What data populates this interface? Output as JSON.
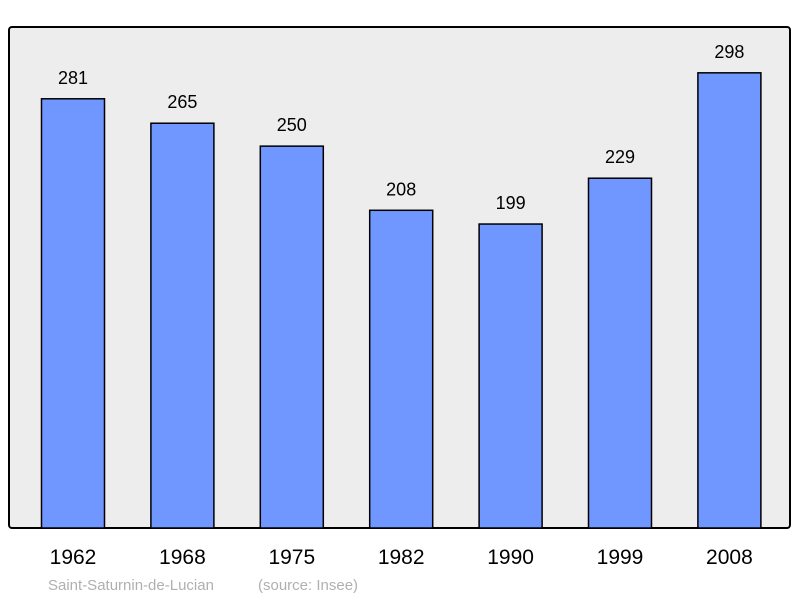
{
  "chart_data": {
    "type": "bar",
    "categories": [
      "1962",
      "1968",
      "1975",
      "1982",
      "1990",
      "1999",
      "2008"
    ],
    "values": [
      281,
      265,
      250,
      208,
      199,
      229,
      298
    ],
    "data_labels": [
      "281",
      "265",
      "250",
      "208",
      "199",
      "229",
      "298"
    ],
    "title": "",
    "xlabel": "",
    "ylabel": "",
    "ylim": [
      0,
      328
    ],
    "grid": false,
    "legend": "none",
    "colors": {
      "bar": "#7097ff",
      "plot_bg": "#ededed",
      "frame": "#000000",
      "footer": "#b0b0b0"
    }
  },
  "footer": {
    "place": "Saint-Saturnin-de-Lucian",
    "source": "(source: Insee)"
  }
}
